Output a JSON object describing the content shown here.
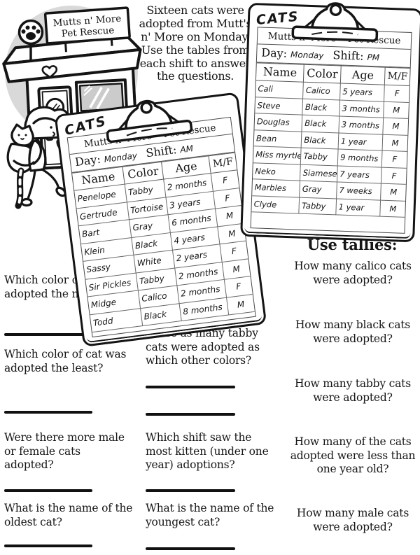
{
  "intro": "Sixteen cats were adopted from Mutt's n' More on Monday. Use the tables from each shift to answer the questions.",
  "building": {
    "sign_line1": "Mutts n' More",
    "sign_line2": "Pet Rescue"
  },
  "clipboards": {
    "am": {
      "tag": "CATS",
      "org": "Mutts n' More • Pet Rescue",
      "day_label": "Day:",
      "day": "Monday",
      "shift_label": "Shift:",
      "shift": "AM",
      "columns": [
        "Name",
        "Color",
        "Age",
        "M/F"
      ],
      "rows": [
        [
          "Penelope",
          "Tabby",
          "2 months",
          "F"
        ],
        [
          "Gertrude",
          "Tortoise",
          "3 years",
          "F"
        ],
        [
          "Bart",
          "Gray",
          "6 months",
          "M"
        ],
        [
          "Klein",
          "Black",
          "4 years",
          "M"
        ],
        [
          "Sassy",
          "White",
          "2 years",
          "F"
        ],
        [
          "Sir Pickles",
          "Tabby",
          "2 months",
          "M"
        ],
        [
          "Midge",
          "Calico",
          "2 months",
          "F"
        ],
        [
          "Todd",
          "Black",
          "8 months",
          "M"
        ]
      ]
    },
    "pm": {
      "tag": "CATS",
      "org": "Mutts n' More • Pet Rescue",
      "day_label": "Day:",
      "day": "Monday",
      "shift_label": "Shift:",
      "shift": "PM",
      "columns": [
        "Name",
        "Color",
        "Age",
        "M/F"
      ],
      "rows": [
        [
          "Cali",
          "Calico",
          "5 years",
          "F"
        ],
        [
          "Steve",
          "Black",
          "3 months",
          "M"
        ],
        [
          "Douglas",
          "Black",
          "3 months",
          "M"
        ],
        [
          "Bean",
          "Black",
          "1 year",
          "M"
        ],
        [
          "Miss myrtle",
          "Tabby",
          "9 months",
          "F"
        ],
        [
          "Neko",
          "Siamese",
          "7 years",
          "F"
        ],
        [
          "Marbles",
          "Gray",
          "7 weeks",
          "M"
        ],
        [
          "Clyde",
          "Tabby",
          "1 year",
          "M"
        ]
      ]
    }
  },
  "questions": {
    "left": [
      {
        "text": "Which color of cat was adopted the most?"
      },
      {
        "text": "Which color of cat was adopted the least?"
      },
      {
        "text": "Were there more male or female cats adopted?"
      },
      {
        "text": "What is the name of the oldest cat?"
      }
    ],
    "middle": [
      {
        "text": "Twice as many tabby cats were adopted as which other colors?"
      },
      {
        "text": "Which shift saw the most kitten (under one year) adoptions?"
      },
      {
        "text": "What is the name of the youngest cat?"
      }
    ],
    "tally_header": "Use tallies:",
    "right": [
      {
        "text": "How many calico cats were adopted?"
      },
      {
        "text": "How many black cats were adopted?"
      },
      {
        "text": "How many tabby cats were adopted?"
      },
      {
        "text": "How many of the cats adopted were less than one year old?"
      },
      {
        "text": "How many male cats were adopted?"
      }
    ]
  },
  "colors": {
    "ink": "#141414",
    "paper": "#ffffff",
    "shade": "#d9d9d9",
    "glass": "#cbcbcb"
  }
}
